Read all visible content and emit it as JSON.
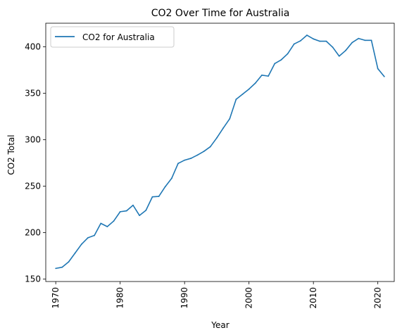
{
  "chart_data": {
    "type": "line",
    "title": "CO2 Over Time for Australia",
    "xlabel": "Year",
    "ylabel": "CO2 Total",
    "xlim": [
      1968.45,
      2022.55
    ],
    "ylim": [
      147.4,
      425.4
    ],
    "xticks": [
      1970,
      1980,
      1990,
      2000,
      2010,
      2020
    ],
    "yticks": [
      150,
      200,
      250,
      300,
      350,
      400
    ],
    "grid": false,
    "legend": "top-left",
    "series": [
      {
        "name": "CO2 for Australia",
        "color": "#1f77b4",
        "x": [
          1970,
          1971,
          1972,
          1973,
          1974,
          1975,
          1976,
          1977,
          1978,
          1979,
          1980,
          1981,
          1982,
          1983,
          1984,
          1985,
          1986,
          1987,
          1988,
          1989,
          1990,
          1991,
          1992,
          1993,
          1994,
          1995,
          1996,
          1997,
          1998,
          1999,
          2000,
          2001,
          2002,
          2003,
          2004,
          2005,
          2006,
          2007,
          2008,
          2009,
          2010,
          2011,
          2012,
          2013,
          2014,
          2015,
          2016,
          2017,
          2018,
          2019,
          2020,
          2021
        ],
        "values": [
          161.5,
          162.8,
          168.5,
          178,
          187.5,
          194.5,
          197,
          210,
          206.5,
          212.5,
          222.5,
          223.5,
          229.5,
          218.5,
          224,
          238.5,
          239,
          249.5,
          258.5,
          274.5,
          278,
          280,
          283.5,
          287.5,
          292.5,
          302,
          312.5,
          322.5,
          343.5,
          349,
          354.5,
          361,
          369.5,
          368.5,
          382,
          386,
          392.5,
          403,
          406.5,
          412.5,
          408.5,
          406,
          406,
          399.5,
          390,
          396,
          404.5,
          409,
          407,
          407,
          376.5,
          368
        ]
      }
    ]
  }
}
